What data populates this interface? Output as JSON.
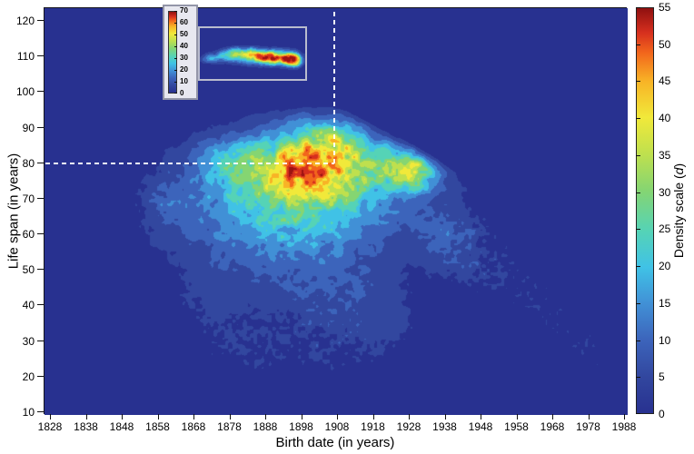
{
  "figure": {
    "xlabel": "Birth date (in years)",
    "ylabel": "Life span (in years)",
    "colorbar_label": {
      "pre": "Density scale (",
      "var": "d",
      "post": ")"
    }
  },
  "chart_data": {
    "type": "heatmap",
    "subtype": "filled-contour-density",
    "title": "",
    "xlabel": "Birth date (in years)",
    "ylabel": "Life span (in years)",
    "x_ticks": [
      1828,
      1838,
      1848,
      1858,
      1868,
      1878,
      1888,
      1898,
      1908,
      1918,
      1928,
      1938,
      1948,
      1958,
      1968,
      1978,
      1988
    ],
    "y_ticks": [
      10,
      20,
      30,
      40,
      50,
      60,
      70,
      80,
      90,
      100,
      110,
      120
    ],
    "xlim": [
      1826.2,
      1988.8
    ],
    "ylim": [
      9.4,
      123.6
    ],
    "grid": false,
    "colorbar": {
      "label": "Density scale (d)",
      "min": 0,
      "max": 55,
      "ticks": [
        0,
        5,
        10,
        15,
        20,
        25,
        30,
        35,
        40,
        45,
        50,
        55
      ],
      "position": "right"
    },
    "inset_legend": {
      "min": 0,
      "max": 70,
      "ticks": [
        0,
        10,
        20,
        30,
        40,
        50,
        60,
        70
      ]
    },
    "crosshair": {
      "birth_year": 1907,
      "life_span": 80,
      "style": "white-dashed"
    },
    "frontier": {
      "start_year": 1908,
      "start_life": 96.5,
      "slope_life_per_year": -0.57,
      "softness": 0.9
    },
    "band_step": 5,
    "palette": [
      "#283190",
      "#32479f",
      "#3c64bb",
      "#4190d6",
      "#40c2e6",
      "#55d3b6",
      "#85d572",
      "#bfe04e",
      "#f1e93a",
      "#f8b326",
      "#f2661c",
      "#d62f1e",
      "#9d1312"
    ],
    "colorbar_gradient": [
      [
        0,
        "#283190"
      ],
      [
        0.09,
        "#32479f"
      ],
      [
        0.18,
        "#3c64bb"
      ],
      [
        0.27,
        "#4190d6"
      ],
      [
        0.36,
        "#40c2e6"
      ],
      [
        0.45,
        "#55d3b6"
      ],
      [
        0.55,
        "#85d572"
      ],
      [
        0.64,
        "#bfe04e"
      ],
      [
        0.73,
        "#f1e93a"
      ],
      [
        0.82,
        "#f8b326"
      ],
      [
        0.89,
        "#f2661c"
      ],
      [
        0.94,
        "#d62f1e"
      ],
      [
        1,
        "#8f1010"
      ]
    ],
    "density_kernels": [
      [
        1902,
        81,
        16,
        11,
        6.5
      ],
      [
        1908,
        84,
        11,
        5.5,
        4
      ],
      [
        1899,
        78,
        13,
        5,
        4
      ],
      [
        1905,
        74,
        9,
        6,
        4
      ],
      [
        1925,
        79,
        22,
        7,
        4.5
      ],
      [
        1930,
        77,
        12,
        4,
        3.5
      ],
      [
        1888,
        79,
        11,
        9,
        6
      ],
      [
        1876,
        80,
        10,
        7,
        5
      ],
      [
        1903,
        88,
        10,
        8,
        5
      ],
      [
        1900,
        77,
        14,
        25,
        10.5
      ],
      [
        1896,
        68,
        9,
        20,
        8
      ],
      [
        1893,
        62,
        7,
        22,
        9
      ],
      [
        1890,
        54,
        5,
        24,
        10
      ],
      [
        1902,
        45,
        4,
        18,
        9
      ],
      [
        1913,
        40,
        3.5,
        11,
        8
      ],
      [
        1922,
        33,
        3.2,
        8,
        6
      ],
      [
        1880,
        31,
        2.8,
        8,
        6
      ],
      [
        1870,
        41,
        2.8,
        7,
        7
      ],
      [
        1861,
        70,
        4.5,
        4.5,
        4.5
      ],
      [
        1937,
        60,
        7,
        6,
        6
      ],
      [
        1944,
        51,
        4,
        6,
        6
      ]
    ],
    "speckle_kernels": [
      [
        1890,
        30,
        5,
        14,
        8
      ],
      [
        1908,
        27,
        4,
        10,
        6
      ],
      [
        1945,
        58,
        5,
        6,
        5
      ],
      [
        1952,
        50,
        5,
        6,
        5
      ],
      [
        1960,
        44,
        4.5,
        6,
        5
      ],
      [
        1968,
        37,
        4.5,
        6,
        5
      ],
      [
        1975,
        30,
        4,
        6,
        4
      ],
      [
        1981,
        25,
        3.5,
        5,
        4
      ],
      [
        1858,
        70,
        3.5,
        4,
        4
      ]
    ],
    "inset": {
      "band_step": 5.833,
      "kernels": [
        [
          8,
          36,
          8,
          5,
          3
        ],
        [
          15,
          35,
          14,
          7,
          4
        ],
        [
          30,
          32,
          20,
          9,
          4.5
        ],
        [
          40,
          26,
          9,
          5,
          3
        ],
        [
          48,
          31,
          24,
          10,
          5
        ],
        [
          58,
          25,
          8,
          5,
          3
        ],
        [
          65,
          33,
          34,
          10,
          5
        ],
        [
          82,
          34,
          44,
          9,
          5
        ],
        [
          98,
          35,
          58,
          7,
          5
        ],
        [
          107,
          37,
          46,
          5,
          4.5
        ],
        [
          70,
          33,
          12,
          30,
          7
        ]
      ]
    }
  },
  "layout_values": {
    "peak_density_note": "max density ~55 near birth 1900-1910, life span 75-88"
  }
}
